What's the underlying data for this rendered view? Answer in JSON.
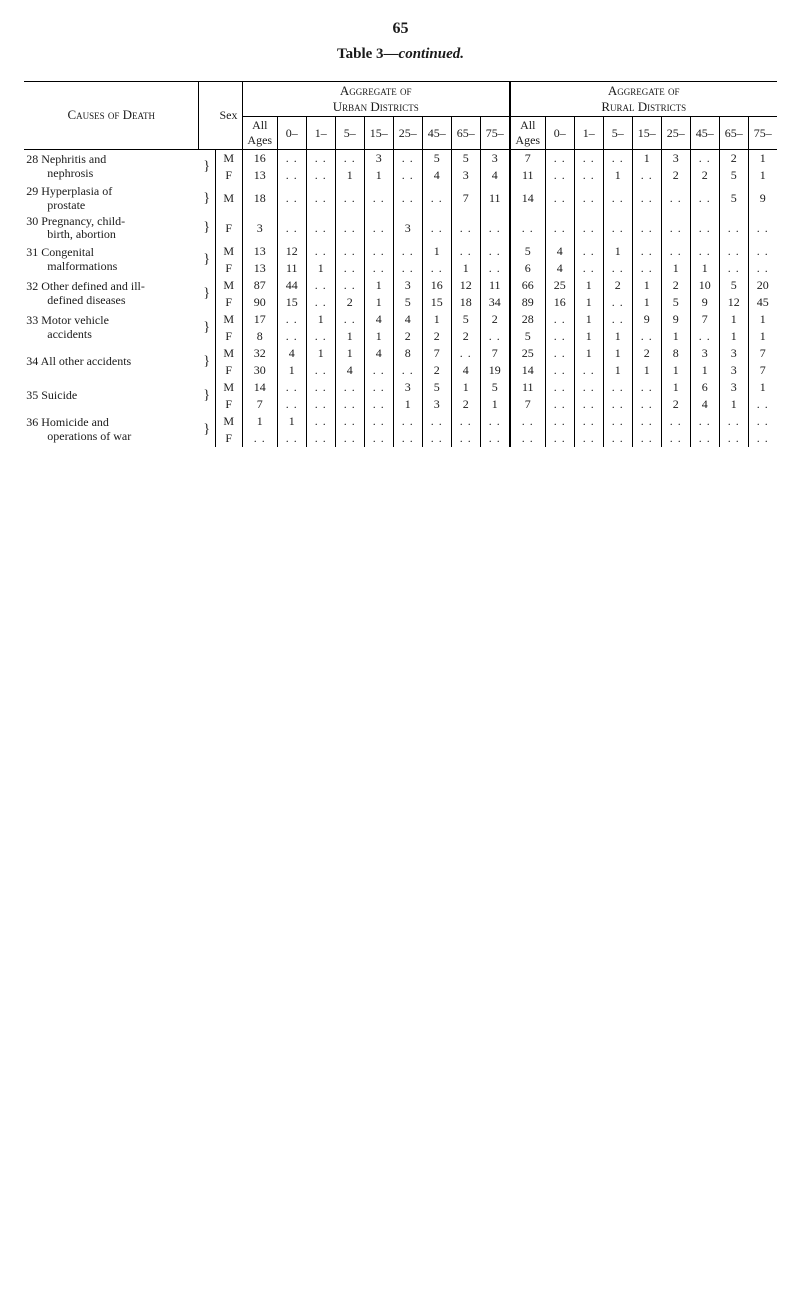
{
  "page_number": "65",
  "title_prefix": "Table 3—",
  "title_cont": "continued.",
  "header": {
    "causes": "Causes of Death",
    "sex": "Sex",
    "urban": "Aggregate of\nUrban Districts",
    "rural": "Aggregate of\nRural Districts",
    "all_ages": "All\nAges",
    "bands": [
      "0–",
      "1–",
      "5–",
      "15–",
      "25–",
      "45–",
      "65–",
      "75–"
    ]
  },
  "tiny_left": [
    "8",
    "9",
    "0",
    "1",
    "2",
    "3",
    "4",
    "5",
    "6"
  ],
  "rows": [
    {
      "num": "28",
      "label": "Nephritis and\n  nephrosis",
      "brace": "}",
      "lines": [
        {
          "sex": "M",
          "urban": [
            "16",
            "..",
            "..",
            "..",
            "3",
            "..",
            "5",
            "5",
            "3"
          ],
          "rural": [
            "7",
            "..",
            "..",
            "..",
            "1",
            "3",
            "..",
            "2",
            "1"
          ]
        },
        {
          "sex": "F",
          "urban": [
            "13",
            "..",
            "..",
            "1",
            "1",
            "..",
            "4",
            "3",
            "4"
          ],
          "rural": [
            "11",
            "..",
            "..",
            "1",
            "..",
            "2",
            "2",
            "5",
            "1"
          ]
        }
      ]
    },
    {
      "num": "29",
      "label": "Hyperplasia of\n  prostate",
      "brace": "}",
      "lines": [
        {
          "sex": "M",
          "urban": [
            "18",
            "..",
            "..",
            "..",
            "..",
            "..",
            "..",
            "7",
            "11"
          ],
          "rural": [
            "14",
            "..",
            "..",
            "..",
            "..",
            "..",
            "..",
            "5",
            "9"
          ]
        }
      ]
    },
    {
      "num": "30",
      "label": "Pregnancy, child-\n  birth, abortion",
      "brace": "}",
      "lines": [
        {
          "sex": "F",
          "urban": [
            "3",
            "..",
            "..",
            "..",
            "..",
            "3",
            "..",
            "..",
            ".."
          ],
          "rural": [
            "..",
            "..",
            "..",
            "..",
            "..",
            "..",
            "..",
            "..",
            ".."
          ]
        }
      ]
    },
    {
      "num": "31",
      "label": "Congenital\n  malformations",
      "brace": "}",
      "lines": [
        {
          "sex": "M",
          "urban": [
            "13",
            "12",
            "..",
            "..",
            "..",
            "..",
            "1",
            "..",
            ".."
          ],
          "rural": [
            "5",
            "4",
            "..",
            "1",
            "..",
            "..",
            "..",
            "..",
            ".."
          ]
        },
        {
          "sex": "F",
          "urban": [
            "13",
            "11",
            "1",
            "..",
            "..",
            "..",
            "..",
            "1",
            ".."
          ],
          "rural": [
            "6",
            "4",
            "..",
            "..",
            "..",
            "1",
            "1",
            "..",
            ".."
          ]
        }
      ]
    },
    {
      "num": "32",
      "label": "Other defined and ill-\n  defined diseases",
      "brace": "}",
      "lines": [
        {
          "sex": "M",
          "urban": [
            "87",
            "44",
            "..",
            "..",
            "1",
            "3",
            "16",
            "12",
            "11"
          ],
          "rural": [
            "66",
            "25",
            "1",
            "2",
            "1",
            "2",
            "10",
            "5",
            "20"
          ]
        },
        {
          "sex": "F",
          "urban": [
            "90",
            "15",
            "..",
            "2",
            "1",
            "5",
            "15",
            "18",
            "34"
          ],
          "rural": [
            "89",
            "16",
            "1",
            "..",
            "1",
            "5",
            "9",
            "12",
            "45"
          ]
        }
      ]
    },
    {
      "num": "33",
      "label": "Motor vehicle\n  accidents",
      "brace": "}",
      "lines": [
        {
          "sex": "M",
          "urban": [
            "17",
            "..",
            "1",
            "..",
            "4",
            "4",
            "1",
            "5",
            "2"
          ],
          "rural": [
            "28",
            "..",
            "1",
            "..",
            "9",
            "9",
            "7",
            "1",
            "1"
          ]
        },
        {
          "sex": "F",
          "urban": [
            "8",
            "..",
            "..",
            "1",
            "1",
            "2",
            "2",
            "2",
            ".."
          ],
          "rural": [
            "5",
            "..",
            "1",
            "1",
            "..",
            "1",
            "..",
            "1",
            "1"
          ]
        }
      ]
    },
    {
      "num": "34",
      "label": "All other accidents",
      "brace": "}",
      "lines": [
        {
          "sex": "M",
          "urban": [
            "32",
            "4",
            "1",
            "1",
            "4",
            "8",
            "7",
            "..",
            "7"
          ],
          "rural": [
            "25",
            "..",
            "1",
            "1",
            "2",
            "8",
            "3",
            "3",
            "7"
          ]
        },
        {
          "sex": "F",
          "urban": [
            "30",
            "1",
            "..",
            "4",
            "..",
            "..",
            "2",
            "4",
            "19"
          ],
          "rural": [
            "14",
            "..",
            "..",
            "1",
            "1",
            "1",
            "1",
            "3",
            "7"
          ]
        }
      ]
    },
    {
      "num": "35",
      "label": "Suicide",
      "brace": "}",
      "lines": [
        {
          "sex": "M",
          "urban": [
            "14",
            "..",
            "..",
            "..",
            "..",
            "3",
            "5",
            "1",
            "5"
          ],
          "rural": [
            "11",
            "..",
            "..",
            "..",
            "..",
            "1",
            "6",
            "3",
            "1"
          ]
        },
        {
          "sex": "F",
          "urban": [
            "7",
            "..",
            "..",
            "..",
            "..",
            "1",
            "3",
            "2",
            "1"
          ],
          "rural": [
            "7",
            "..",
            "..",
            "..",
            "..",
            "2",
            "4",
            "1",
            ".."
          ]
        }
      ]
    },
    {
      "num": "36",
      "label": "Homicide and\n  operations of war",
      "brace": "}",
      "lines": [
        {
          "sex": "M",
          "urban": [
            "1",
            "1",
            "..",
            "..",
            "..",
            "..",
            "..",
            "..",
            ".."
          ],
          "rural": [
            "..",
            "..",
            "..",
            "..",
            "..",
            "..",
            "..",
            "..",
            ".."
          ]
        },
        {
          "sex": "F",
          "urban": [
            "..",
            "..",
            "..",
            "..",
            "..",
            "..",
            "..",
            "..",
            ".."
          ],
          "rural": [
            "..",
            "..",
            "..",
            "..",
            "..",
            "..",
            "..",
            "..",
            ".."
          ]
        }
      ]
    }
  ]
}
